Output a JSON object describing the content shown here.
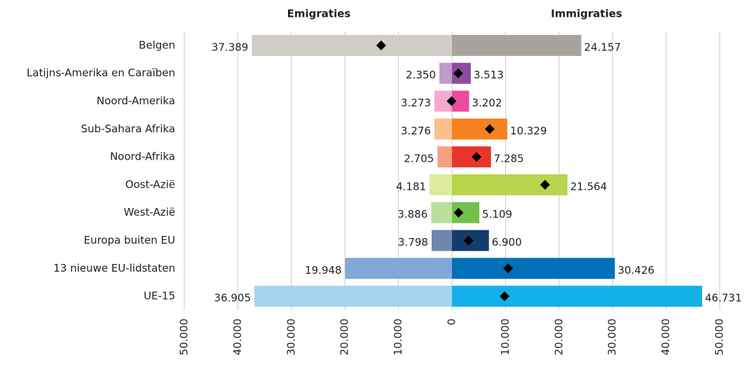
{
  "chart_data": {
    "type": "butterfly",
    "categories": [
      "Belgen",
      "Latijns-Amerika en Caraïben",
      "Noord-Amerika",
      "Sub-Sahara Afrika",
      "Noord-Afrika",
      "Oost-Azië",
      "West-Azië",
      "Europa buiten EU",
      "13 nieuwe EU-lidstaten",
      "UE-15"
    ],
    "series": [
      {
        "name": "Emigraties",
        "colors": [
          "#d0ccc6",
          "#c09ac8",
          "#f5a8d0",
          "#fcc08c",
          "#f4a080",
          "#dcec9c",
          "#b8e09c",
          "#6e86ac",
          "#80a8d8",
          "#a4d4f0"
        ],
        "values": [
          37389,
          2350,
          3273,
          3276,
          2705,
          4181,
          3886,
          3798,
          19948,
          36905
        ],
        "value_labels": [
          "37.389",
          "2.350",
          "3.273",
          "3.276",
          "2.705",
          "4.181",
          "3.886",
          "3.798",
          "19.948",
          "36.905"
        ]
      },
      {
        "name": "Immigraties",
        "colors": [
          "#a8a39c",
          "#8e4a9e",
          "#ec4c9c",
          "#f58220",
          "#e8352c",
          "#b8d44c",
          "#74c04c",
          "#143c6c",
          "#0070b8",
          "#14b0e8"
        ],
        "values": [
          24157,
          3513,
          3202,
          10329,
          7285,
          21564,
          5109,
          6900,
          30426,
          46731
        ],
        "value_labels": [
          "24.157",
          "3.513",
          "3.202",
          "10.329",
          "7.285",
          "21.564",
          "5.109",
          "6.900",
          "30.426",
          "46.731"
        ]
      }
    ],
    "markers": {
      "color": "#000000",
      "values": [
        -13232,
        1163,
        -71,
        7053,
        4580,
        17383,
        1223,
        3102,
        10478,
        9826
      ]
    },
    "xlim": [
      -50000,
      50000
    ],
    "xticks": [
      {
        "value": -50000,
        "label": "50.000"
      },
      {
        "value": -40000,
        "label": "40.000"
      },
      {
        "value": -30000,
        "label": "30.000"
      },
      {
        "value": -20000,
        "label": "20.000"
      },
      {
        "value": -10000,
        "label": "10.000"
      },
      0,
      {
        "value": 10000,
        "label": "10.000"
      },
      {
        "value": 20000,
        "label": "20.000"
      },
      {
        "value": 30000,
        "label": "30.000"
      },
      {
        "value": 40000,
        "label": "40.000"
      },
      {
        "value": 50000,
        "label": "50.000"
      }
    ],
    "grid": true
  }
}
